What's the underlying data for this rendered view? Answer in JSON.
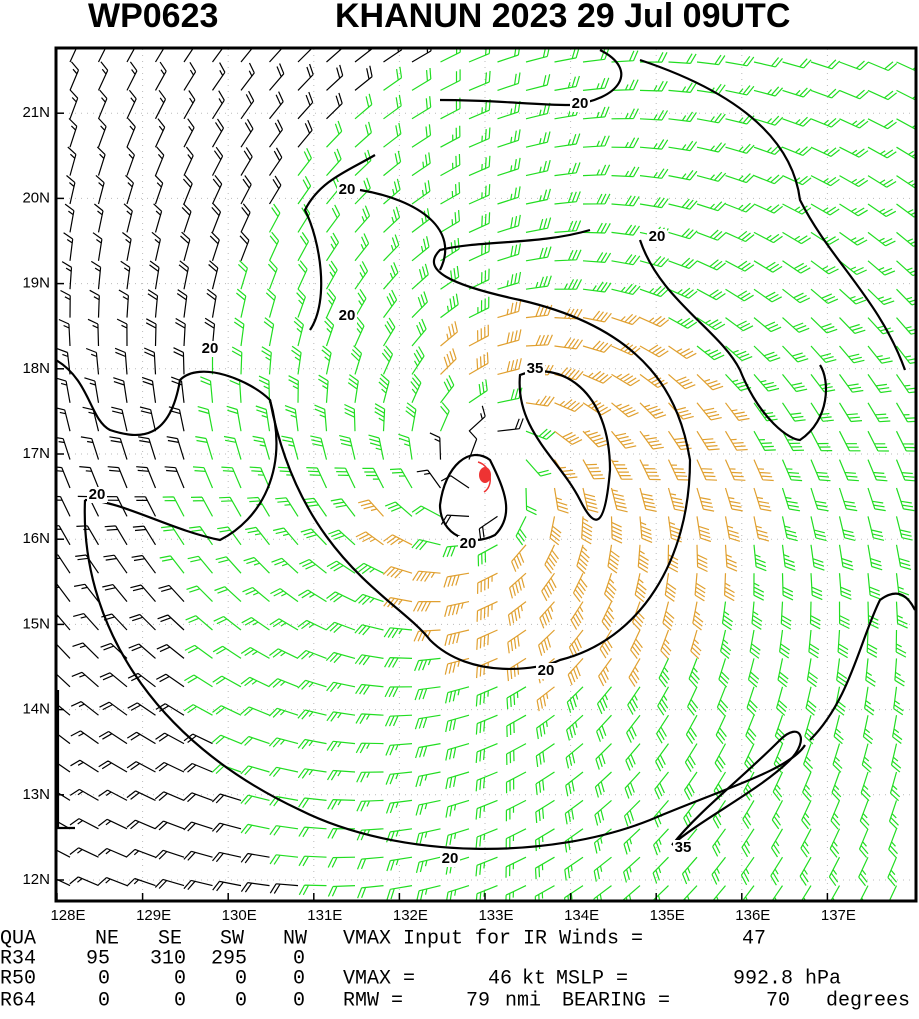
{
  "header": {
    "storm_id": "WP0623",
    "title": "KHANUN 2023 29 Jul 09UTC"
  },
  "x_axis": {
    "ticks": [
      {
        "value": 128,
        "label": "128E"
      },
      {
        "value": 129,
        "label": "129E"
      },
      {
        "value": 130,
        "label": "130E"
      },
      {
        "value": 131,
        "label": "131E"
      },
      {
        "value": 132,
        "label": "132E"
      },
      {
        "value": 133,
        "label": "133E"
      },
      {
        "value": 134,
        "label": "134E"
      },
      {
        "value": 135,
        "label": "135E"
      },
      {
        "value": 136,
        "label": "136E"
      },
      {
        "value": 137,
        "label": "137E"
      }
    ]
  },
  "y_axis": {
    "ticks": [
      {
        "value": 12,
        "label": "12N"
      },
      {
        "value": 13,
        "label": "13N"
      },
      {
        "value": 14,
        "label": "14N"
      },
      {
        "value": 15,
        "label": "15N"
      },
      {
        "value": 16,
        "label": "16N"
      },
      {
        "value": 17,
        "label": "17N"
      },
      {
        "value": 18,
        "label": "18N"
      },
      {
        "value": 19,
        "label": "19N"
      },
      {
        "value": 20,
        "label": "20N"
      },
      {
        "value": 21,
        "label": "21N"
      }
    ]
  },
  "contour_labels": [
    20,
    20,
    20,
    20,
    20,
    20,
    20,
    20,
    20,
    35,
    35
  ],
  "table": {
    "header": [
      "QUA",
      "NE",
      "SE",
      "SW",
      "NW"
    ],
    "rows": [
      [
        "R34",
        95,
        310,
        295,
        0
      ],
      [
        "R50",
        0,
        0,
        0,
        0
      ],
      [
        "R64",
        0,
        0,
        0,
        0
      ]
    ]
  },
  "notes": {
    "vmax_input_label": "VMAX Input for IR Winds =",
    "vmax_input": 47,
    "vmax_label": "VMAX =",
    "vmax": 46,
    "vmax_unit": "kt",
    "mslp_label": "MSLP =",
    "mslp": 992.8,
    "mslp_unit": "hPa",
    "rmw_label": "RMW =",
    "rmw": 79,
    "rmw_unit": "nmi",
    "bearing_label": "BEARING =",
    "bearing": 70,
    "bearing_unit": "degrees"
  }
}
